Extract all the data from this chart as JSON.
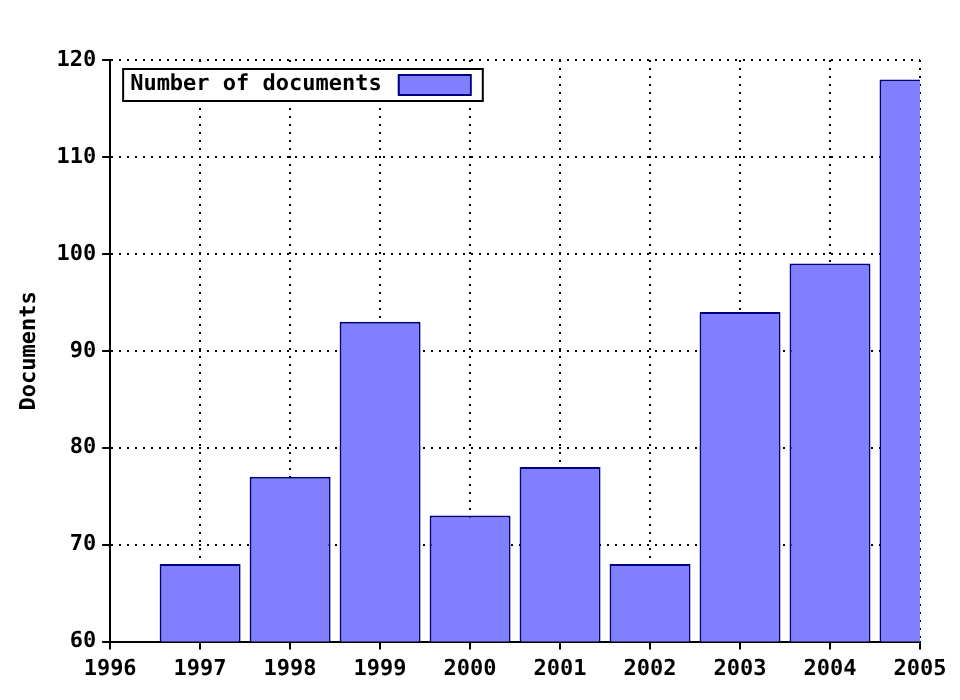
{
  "chart_data": {
    "type": "bar",
    "ylabel": "Documents",
    "x": [
      1997,
      1998,
      1999,
      2000,
      2001,
      2002,
      2003,
      2004,
      2005
    ],
    "series": [
      {
        "name": "Number of documents",
        "color": "#8080ff",
        "values": [
          68,
          77,
          93,
          73,
          78,
          68,
          94,
          99,
          118
        ]
      }
    ],
    "xlim": [
      1996,
      2005
    ],
    "xticks": [
      1996,
      1997,
      1998,
      1999,
      2000,
      2001,
      2002,
      2003,
      2004,
      2005
    ],
    "ylim": [
      60,
      120
    ],
    "yticks": [
      60,
      70,
      80,
      90,
      100,
      110,
      120
    ],
    "grid": true,
    "legend": "top left"
  }
}
